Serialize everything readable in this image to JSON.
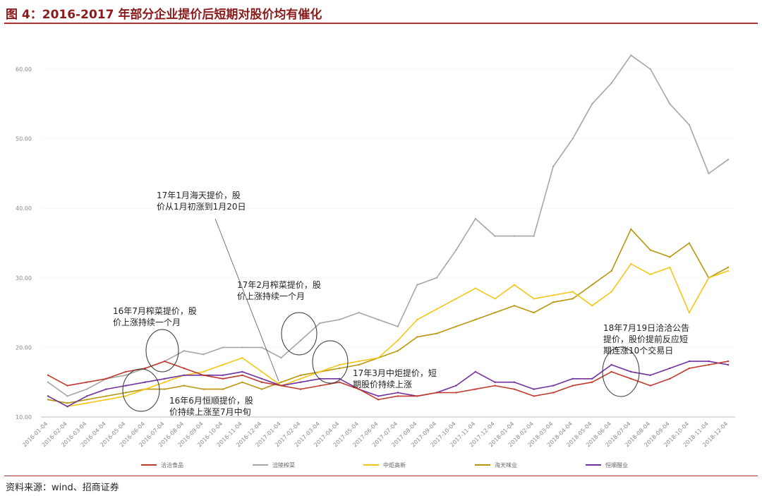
{
  "title": "图 4：2016-2017 年部分企业提价后短期对股价均有催化",
  "source": "资料来源：wind、招商证券",
  "chart_data": {
    "type": "line",
    "ylim": [
      10,
      65
    ],
    "y_ticks": [
      "10.00",
      "20.00",
      "30.00",
      "40.00",
      "50.00",
      "60.00"
    ],
    "x_ticks": [
      "2016-01-04",
      "2016-02-04",
      "2016-03-04",
      "2016-04-04",
      "2016-05-04",
      "2016-06-04",
      "2016-07-04",
      "2016-08-04",
      "2016-09-04",
      "2016-10-04",
      "2016-11-04",
      "2016-12-04",
      "2017-01-04",
      "2017-02-04",
      "2017-03-04",
      "2017-04-04",
      "2017-05-04",
      "2017-06-04",
      "2017-07-04",
      "2017-08-04",
      "2017-09-04",
      "2017-10-04",
      "2017-11-04",
      "2017-12-04",
      "2018-01-04",
      "2018-02-04",
      "2018-03-04",
      "2018-04-04",
      "2018-05-04",
      "2018-06-04",
      "2018-07-04",
      "2018-08-04",
      "2018-09-04",
      "2018-10-04",
      "2018-11-04",
      "2018-12-04"
    ],
    "series": [
      {
        "name": "洽洽食品",
        "color": "#c0392b",
        "values": [
          16.0,
          14.5,
          15.0,
          15.5,
          16.5,
          17.0,
          18.0,
          17.0,
          16.0,
          15.5,
          16.0,
          15.0,
          14.5,
          14.0,
          14.5,
          15.0,
          14.0,
          12.5,
          13.0,
          13.0,
          13.5,
          13.5,
          14.0,
          14.5,
          14.0,
          13.0,
          13.5,
          14.5,
          15.0,
          16.5,
          15.5,
          14.5,
          15.5,
          17.0,
          17.5,
          18.0
        ]
      },
      {
        "name": "涪陵榨菜",
        "color": "#a6a6a6",
        "values": [
          15.0,
          13.0,
          14.0,
          15.5,
          16.0,
          17.0,
          18.0,
          19.5,
          19.0,
          20.0,
          20.0,
          20.0,
          18.5,
          21.0,
          23.5,
          24.0,
          25.0,
          24.0,
          23.0,
          29.0,
          30.0,
          34.0,
          38.5,
          36.0,
          36.0,
          36.0,
          46.0,
          50.0,
          55.0,
          58.0,
          62.0,
          60.0,
          55.0,
          52.0,
          45.0,
          47.0
        ]
      },
      {
        "name": "中炬高新",
        "color": "#f5c518",
        "values": [
          13.0,
          11.5,
          12.0,
          12.5,
          13.0,
          14.0,
          15.0,
          16.0,
          16.5,
          17.5,
          18.5,
          16.5,
          14.5,
          15.5,
          16.5,
          17.5,
          18.0,
          18.5,
          21.0,
          24.0,
          25.5,
          27.0,
          28.5,
          27.0,
          29.0,
          27.0,
          27.5,
          28.0,
          26.0,
          28.0,
          32.0,
          30.5,
          31.5,
          25.0,
          30.0,
          31.0
        ]
      },
      {
        "name": "海天味业",
        "color": "#b8960c",
        "values": [
          12.5,
          12.0,
          12.5,
          13.0,
          13.5,
          14.0,
          14.0,
          14.5,
          14.0,
          14.0,
          15.0,
          14.0,
          15.0,
          16.0,
          16.5,
          17.0,
          17.5,
          18.5,
          19.5,
          21.5,
          22.0,
          23.0,
          24.0,
          25.0,
          26.0,
          25.0,
          26.5,
          27.0,
          29.0,
          31.0,
          37.0,
          34.0,
          33.0,
          35.0,
          30.0,
          31.5
        ]
      },
      {
        "name": "恒顺醋业",
        "color": "#7030a0",
        "values": [
          13.0,
          11.5,
          13.0,
          14.0,
          14.5,
          15.0,
          15.5,
          16.0,
          16.0,
          16.0,
          16.5,
          15.5,
          14.5,
          15.0,
          15.5,
          15.5,
          14.0,
          13.0,
          13.5,
          13.0,
          13.5,
          14.5,
          16.5,
          15.0,
          15.0,
          14.0,
          14.5,
          15.5,
          15.5,
          17.5,
          16.5,
          16.0,
          17.0,
          18.0,
          18.0,
          17.5
        ]
      }
    ],
    "annotations": [
      {
        "lines": [
          "17年1月海天提价，股",
          "价从1月初涨到1月20日"
        ]
      },
      {
        "lines": [
          "17年2月榨菜提价，股",
          "价上涨持续一个月"
        ]
      },
      {
        "lines": [
          "16年7月榨菜提价，股",
          "价上涨持续一个月"
        ]
      },
      {
        "lines": [
          "17年3月中炬提价，短",
          "期股价持续上涨"
        ]
      },
      {
        "lines": [
          "16年6月恒顺提价，股",
          "价持续上涨至7月中旬"
        ]
      },
      {
        "lines": [
          "18年7月19日洽洽公告",
          "提价，股价提前反应短",
          "期连涨10个交易日"
        ]
      }
    ]
  }
}
